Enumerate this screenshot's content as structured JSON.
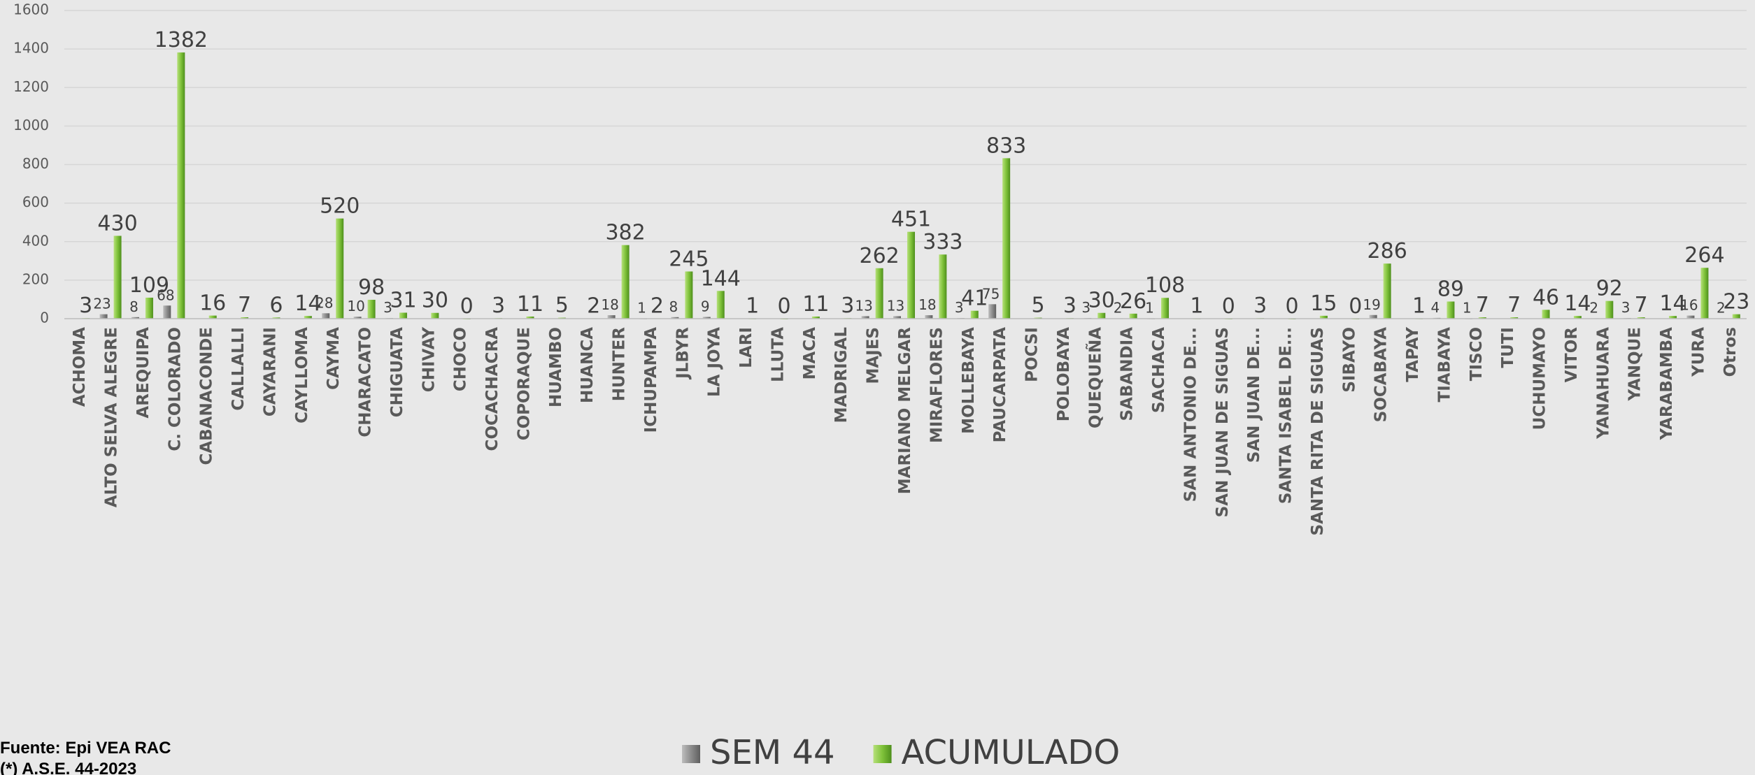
{
  "chart_data": {
    "type": "bar",
    "categories": [
      "ACHOMA",
      "ALTO SELVA ALEGRE",
      "AREQUIPA",
      "C. COLORADO",
      "CABANACONDE",
      "CALLALLI",
      "CAYARANI",
      "CAYLLOMA",
      "CAYMA",
      "CHARACATO",
      "CHIGUATA",
      "CHIVAY",
      "CHOCO",
      "COCACHACRA",
      "COPORAQUE",
      "HUAMBO",
      "HUANCA",
      "HUNTER",
      "ICHUPAMPA",
      "JLBYR",
      "LA JOYA",
      "LARI",
      "LLUTA",
      "MACA",
      "MADRIGAL",
      "MAJES",
      "MARIANO MELGAR",
      "MIRAFLORES",
      "MOLLEBAYA",
      "PAUCARPATA",
      "POCSI",
      "POLOBAYA",
      "QUEQUEÑA",
      "SABANDIA",
      "SACHACA",
      "SAN ANTONIO DE...",
      "SAN JUAN DE SIGUAS",
      "SAN JUAN DE...",
      "SANTA ISABEL DE...",
      "SANTA RITA DE SIGUAS",
      "SIBAYO",
      "SOCABAYA",
      "TAPAY",
      "TIABAYA",
      "TISCO",
      "TUTI",
      "UCHUMAYO",
      "VITOR",
      "YANAHUARA",
      "YANQUE",
      "YARABAMBA",
      "YURA",
      "Otros"
    ],
    "series": [
      {
        "name": "SEM 44",
        "color": "#8c8c8c",
        "values": [
          null,
          23,
          8,
          68,
          null,
          null,
          null,
          null,
          28,
          10,
          3,
          null,
          null,
          null,
          null,
          null,
          null,
          18,
          1,
          8,
          9,
          null,
          null,
          null,
          null,
          13,
          13,
          18,
          3,
          75,
          null,
          null,
          3,
          2,
          1,
          null,
          null,
          null,
          null,
          null,
          null,
          19,
          null,
          4,
          1,
          null,
          null,
          null,
          2,
          3,
          null,
          16,
          2
        ]
      },
      {
        "name": "ACUMULADO",
        "color": "#7fc23a",
        "values": [
          3,
          430,
          109,
          1382,
          16,
          7,
          6,
          14,
          520,
          98,
          31,
          30,
          0,
          3,
          11,
          5,
          2,
          382,
          2,
          245,
          144,
          1,
          0,
          11,
          3,
          262,
          451,
          333,
          41,
          833,
          5,
          3,
          30,
          26,
          108,
          1,
          0,
          3,
          0,
          15,
          0,
          286,
          1,
          89,
          7,
          7,
          46,
          14,
          92,
          7,
          14,
          264,
          23
        ]
      }
    ],
    "ylim": [
      0,
      1600
    ],
    "yticks": [
      0,
      200,
      400,
      600,
      800,
      1000,
      1200,
      1400,
      1600
    ],
    "grid": true,
    "legend": "bottom",
    "notes": [
      "Fuente: Epi VEA RAC",
      "(*) A.S.E. 44-2023"
    ]
  }
}
